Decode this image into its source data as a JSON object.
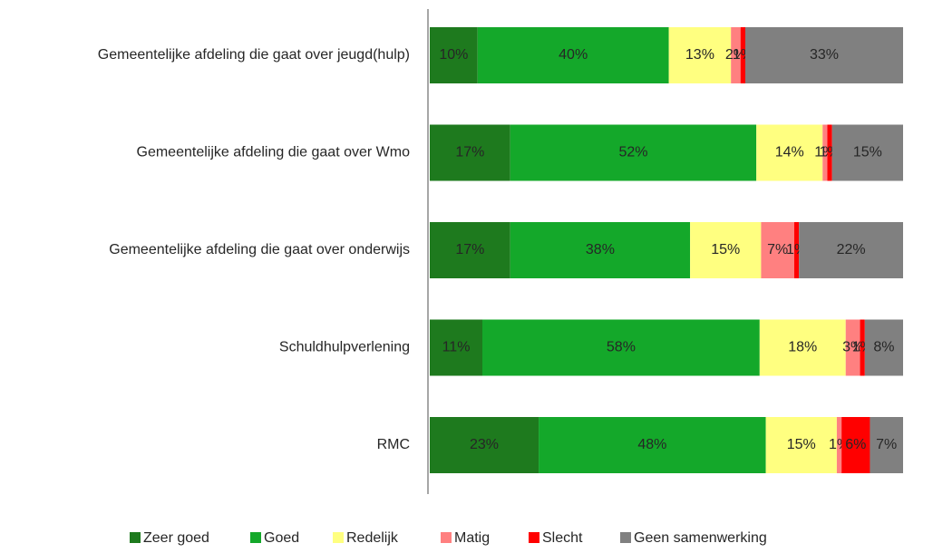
{
  "chart_data": {
    "type": "bar",
    "orientation": "horizontal",
    "stacking": "percent",
    "categories": [
      "Gemeentelijke afdeling die gaat over jeugd(hulp)",
      "Gemeentelijke afdeling die gaat over Wmo",
      "Gemeentelijke afdeling die gaat over onderwijs",
      "Schuldhulpverlening",
      "RMC"
    ],
    "series": [
      {
        "name": "Zeer goed",
        "color": "#1e7a1e",
        "values": [
          10,
          17,
          17,
          11,
          23
        ],
        "value_labels": [
          "10%",
          "17%",
          "17%",
          "11%",
          "23%"
        ]
      },
      {
        "name": "Goed",
        "color": "#14a82a",
        "values": [
          40,
          52,
          38,
          58,
          48
        ],
        "value_labels": [
          "40%",
          "52%",
          "38%",
          "58%",
          "48%"
        ]
      },
      {
        "name": "Redelijk",
        "color": "#ffff80",
        "values": [
          13,
          14,
          15,
          18,
          15
        ],
        "value_labels": [
          "13%",
          "14%",
          "15%",
          "18%",
          "15%"
        ]
      },
      {
        "name": "Matig",
        "color": "#ff8080",
        "values": [
          2,
          1,
          7,
          3,
          1
        ],
        "value_labels": [
          "2%",
          "1%",
          "7%",
          "3%",
          "1%"
        ]
      },
      {
        "name": "Slecht",
        "color": "#ff0000",
        "values": [
          1,
          1,
          1,
          1,
          6
        ],
        "value_labels": [
          "1%",
          "1%",
          "1%",
          "1%",
          "6%"
        ]
      },
      {
        "name": "Geen samenwerking",
        "color": "#808080",
        "values": [
          33,
          15,
          22,
          8,
          7
        ],
        "value_labels": [
          "33%",
          "15%",
          "22%",
          "8%",
          "7%"
        ]
      }
    ],
    "legend": "bottom"
  }
}
